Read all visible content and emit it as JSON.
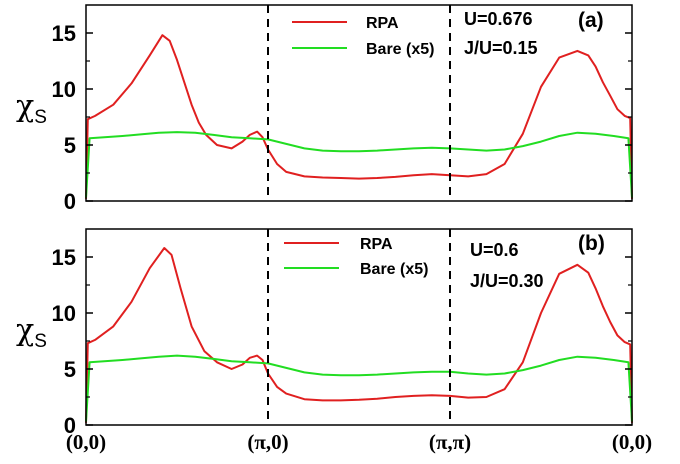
{
  "chart_data": [
    {
      "type": "line",
      "panel_label": "(a)",
      "ylabel": "χ",
      "ylabel_sub": "S",
      "ylim": [
        0,
        17.5
      ],
      "yticks": [
        "0",
        "5",
        "10",
        "15"
      ],
      "x_ticks": [
        "(0,0)",
        "(π,0)",
        "(π,π)",
        "(0,0)"
      ],
      "annotations": [
        "U=0.676",
        "J/U=0.15"
      ],
      "legend_position": "top-center",
      "colors": {
        "RPA": "#e02020",
        "Bare (x5)": "#22dd22",
        "symmetry_lines": "#000000"
      },
      "series": [
        {
          "name": "RPA",
          "x": [
            0,
            0.01,
            0.05,
            0.15,
            0.25,
            0.35,
            0.42,
            0.46,
            0.5,
            0.54,
            0.58,
            0.62,
            0.66,
            0.72,
            0.8,
            0.86,
            0.9,
            0.94,
            0.97,
            1.0,
            1.05,
            1.1,
            1.2,
            1.3,
            1.4,
            1.5,
            1.6,
            1.7,
            1.8,
            1.9,
            2.0,
            2.1,
            2.2,
            2.3,
            2.4,
            2.5,
            2.6,
            2.7,
            2.76,
            2.8,
            2.84,
            2.88,
            2.92,
            2.96,
            2.99,
            3.0
          ],
          "y": [
            0.2,
            7.3,
            7.6,
            8.6,
            10.5,
            13.0,
            14.8,
            14.3,
            12.6,
            10.6,
            8.6,
            7.0,
            5.9,
            5.0,
            4.7,
            5.3,
            5.9,
            6.2,
            5.7,
            4.6,
            3.3,
            2.6,
            2.2,
            2.1,
            2.05,
            2.0,
            2.05,
            2.15,
            2.3,
            2.4,
            2.3,
            2.2,
            2.4,
            3.3,
            6.0,
            10.2,
            12.8,
            13.4,
            13.0,
            12.0,
            10.6,
            9.4,
            8.2,
            7.6,
            7.4,
            0.2
          ]
        },
        {
          "name": "Bare (x5)",
          "x": [
            0,
            0.02,
            0.1,
            0.2,
            0.3,
            0.4,
            0.5,
            0.6,
            0.7,
            0.8,
            0.9,
            1.0,
            1.1,
            1.2,
            1.3,
            1.4,
            1.5,
            1.6,
            1.7,
            1.8,
            1.9,
            2.0,
            2.1,
            2.2,
            2.3,
            2.4,
            2.5,
            2.6,
            2.7,
            2.8,
            2.9,
            2.98,
            3.0
          ],
          "y": [
            0.3,
            5.6,
            5.7,
            5.8,
            5.95,
            6.1,
            6.15,
            6.1,
            5.9,
            5.7,
            5.6,
            5.5,
            5.1,
            4.7,
            4.5,
            4.45,
            4.45,
            4.5,
            4.6,
            4.7,
            4.75,
            4.7,
            4.6,
            4.5,
            4.6,
            4.9,
            5.3,
            5.8,
            6.1,
            6.0,
            5.8,
            5.6,
            0.3
          ]
        }
      ]
    },
    {
      "type": "line",
      "panel_label": "(b)",
      "ylabel": "χ",
      "ylabel_sub": "S",
      "ylim": [
        0,
        17.5
      ],
      "yticks": [
        "0",
        "5",
        "10",
        "15"
      ],
      "x_ticks": [
        "(0,0)",
        "(π,0)",
        "(π,π)",
        "(0,0)"
      ],
      "annotations": [
        "U=0.6",
        "J/U=0.30"
      ],
      "legend_position": "top-center",
      "colors": {
        "RPA": "#e02020",
        "Bare (x5)": "#22dd22",
        "symmetry_lines": "#000000"
      },
      "series": [
        {
          "name": "RPA",
          "x": [
            0,
            0.01,
            0.05,
            0.15,
            0.25,
            0.35,
            0.43,
            0.47,
            0.52,
            0.58,
            0.65,
            0.72,
            0.8,
            0.86,
            0.9,
            0.94,
            0.97,
            1.0,
            1.05,
            1.1,
            1.2,
            1.3,
            1.4,
            1.5,
            1.6,
            1.7,
            1.8,
            1.9,
            2.0,
            2.1,
            2.2,
            2.3,
            2.4,
            2.5,
            2.6,
            2.7,
            2.76,
            2.8,
            2.84,
            2.88,
            2.92,
            2.96,
            2.99,
            3.0
          ],
          "y": [
            0.2,
            7.3,
            7.6,
            8.8,
            11.0,
            14.0,
            15.8,
            15.2,
            12.2,
            8.8,
            6.6,
            5.6,
            5.0,
            5.4,
            6.0,
            6.2,
            5.8,
            4.6,
            3.4,
            2.8,
            2.3,
            2.2,
            2.2,
            2.25,
            2.35,
            2.5,
            2.6,
            2.65,
            2.6,
            2.45,
            2.5,
            3.2,
            5.6,
            10.0,
            13.5,
            14.3,
            13.6,
            12.2,
            10.6,
            9.2,
            8.0,
            7.4,
            7.2,
            0.2
          ]
        },
        {
          "name": "Bare (x5)",
          "x": [
            0,
            0.02,
            0.1,
            0.2,
            0.3,
            0.4,
            0.5,
            0.6,
            0.7,
            0.8,
            0.9,
            1.0,
            1.1,
            1.2,
            1.3,
            1.4,
            1.5,
            1.6,
            1.7,
            1.8,
            1.9,
            2.0,
            2.1,
            2.2,
            2.3,
            2.4,
            2.5,
            2.6,
            2.7,
            2.8,
            2.9,
            2.98,
            3.0
          ],
          "y": [
            0.3,
            5.6,
            5.7,
            5.8,
            5.95,
            6.1,
            6.2,
            6.1,
            5.9,
            5.7,
            5.6,
            5.5,
            5.1,
            4.7,
            4.5,
            4.45,
            4.45,
            4.5,
            4.6,
            4.7,
            4.75,
            4.75,
            4.6,
            4.5,
            4.6,
            4.9,
            5.3,
            5.8,
            6.1,
            6.0,
            5.8,
            5.6,
            0.3
          ]
        }
      ]
    }
  ]
}
